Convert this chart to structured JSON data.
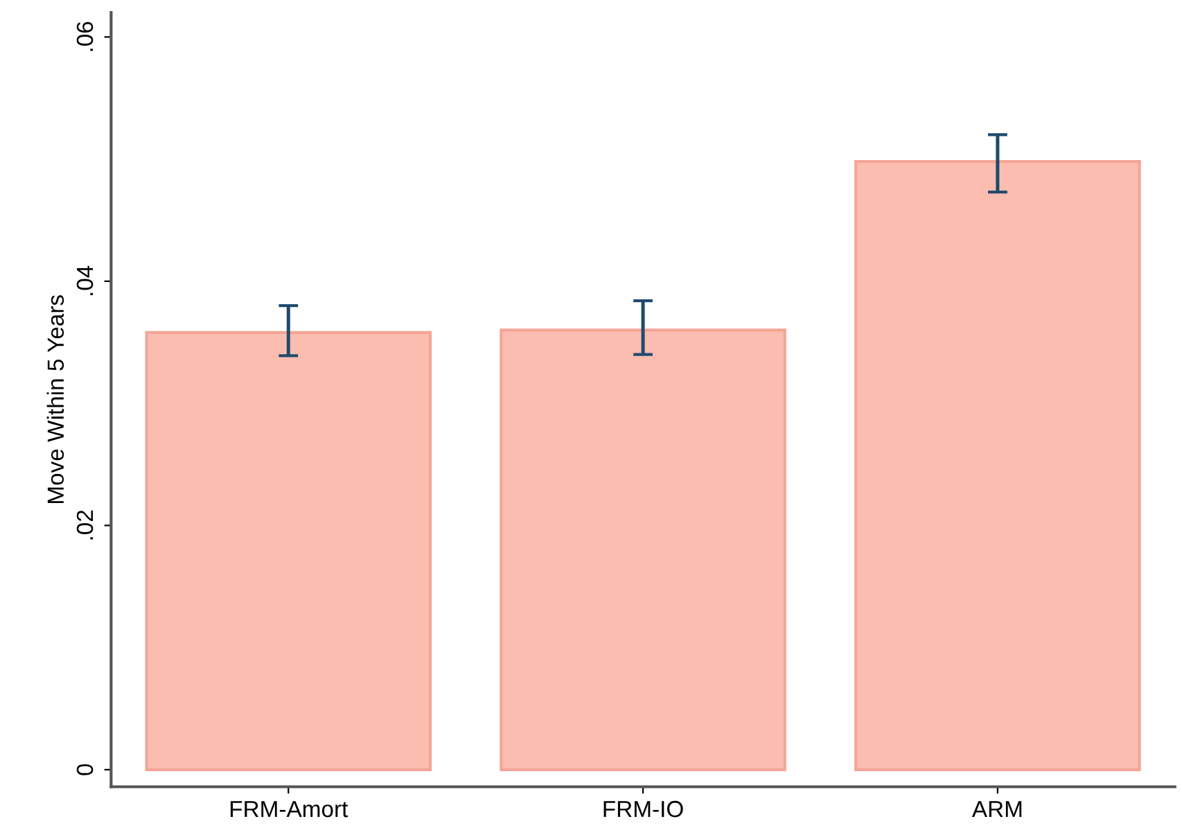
{
  "chart_data": {
    "type": "bar",
    "ylabel": "Move Within 5 Years",
    "categories": [
      "FRM-Amort",
      "FRM-IO",
      "ARM"
    ],
    "values": [
      0.0358,
      0.036,
      0.0498
    ],
    "errors": [
      [
        0.0339,
        0.038
      ],
      [
        0.034,
        0.0384
      ],
      [
        0.0473,
        0.052
      ]
    ],
    "color": "#fcbdb1",
    "ylim": [
      -0.0014,
      0.062
    ],
    "yticks": [
      0,
      {
        "value": 0.02,
        "label": ".02"
      },
      {
        "value": 0.04,
        "label": ".04"
      },
      {
        "value": 0.06,
        "label": ".06"
      }
    ],
    "grid": false,
    "legend": false
  }
}
